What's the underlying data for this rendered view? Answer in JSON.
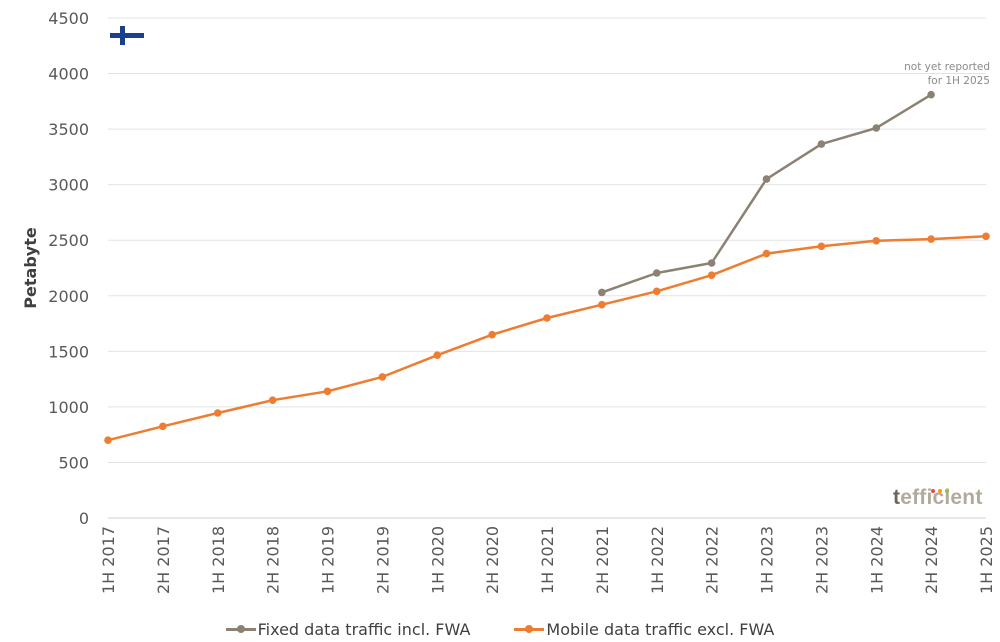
{
  "chart_data": {
    "type": "line",
    "categories": [
      "1H 2017",
      "2H 2017",
      "1H 2018",
      "2H 2018",
      "1H 2019",
      "2H 2019",
      "1H 2020",
      "2H 2020",
      "1H 2021",
      "2H 2021",
      "1H 2022",
      "2H 2022",
      "1H 2023",
      "2H 2023",
      "1H 2024",
      "2H 2024",
      "1H 2025"
    ],
    "series": [
      {
        "name": "Fixed data traffic incl. FWA",
        "color": "#8c8273",
        "values": [
          null,
          null,
          null,
          null,
          null,
          null,
          null,
          null,
          null,
          2030,
          2205,
          2295,
          3050,
          3365,
          3510,
          3810,
          null
        ]
      },
      {
        "name": "Mobile data traffic excl. FWA",
        "color": "#ed7d31",
        "values": [
          700,
          825,
          945,
          1060,
          1140,
          1270,
          1465,
          1650,
          1800,
          1920,
          2040,
          2185,
          2380,
          2445,
          2495,
          2510,
          2535
        ]
      }
    ],
    "title": "",
    "xlabel": "",
    "ylabel": "Petabyte",
    "ylim": [
      0,
      4500
    ],
    "yticks": [
      0,
      500,
      1000,
      1500,
      2000,
      2500,
      3000,
      3500,
      4000,
      4500
    ],
    "grid": true,
    "legend_position": "bottom",
    "annotation": {
      "lines": [
        "not yet reported",
        "for 1H 2025"
      ]
    }
  },
  "branding": {
    "logo_text": "tefficient",
    "logo_dot_colors": [
      "#e84c3d",
      "#f39c12",
      "#8bc34a"
    ]
  },
  "flag": {
    "country": "Finland",
    "icon": "finland-flag-icon",
    "cross_color": "#1b3f8f"
  }
}
